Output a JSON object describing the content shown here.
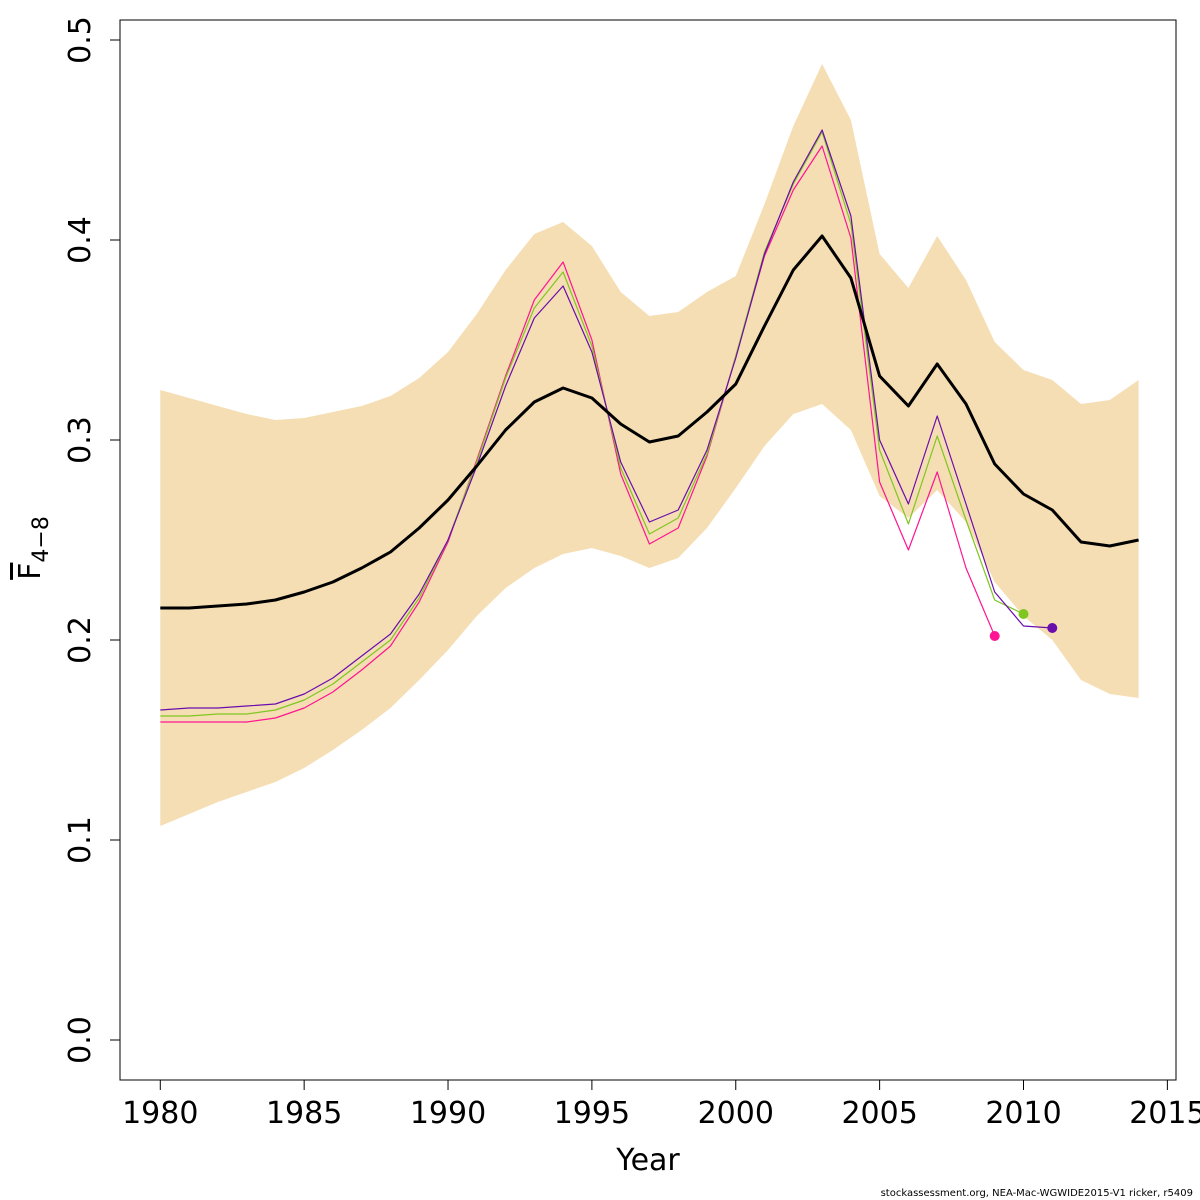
{
  "chart_data": {
    "type": "line",
    "xlabel": "Year",
    "ylabel": "F",
    "ylabel_subscript": "4−8",
    "xlim": [
      1978.6,
      2015.3
    ],
    "ylim": [
      -0.02,
      0.51
    ],
    "xticks": [
      1980,
      1985,
      1990,
      1995,
      2000,
      2005,
      2010,
      2015
    ],
    "yticks": [
      0.0,
      0.1,
      0.2,
      0.3,
      0.4,
      0.5
    ],
    "xtick_labels": [
      "1980",
      "1985",
      "1990",
      "1995",
      "2000",
      "2005",
      "2010",
      "2015"
    ],
    "ytick_labels": [
      "0.0",
      "0.1",
      "0.2",
      "0.3",
      "0.4",
      "0.5"
    ],
    "grid": false,
    "band": {
      "color": "#f5deb3",
      "x": [
        1980,
        1981,
        1982,
        1983,
        1984,
        1985,
        1986,
        1987,
        1988,
        1989,
        1990,
        1991,
        1992,
        1993,
        1994,
        1995,
        1996,
        1997,
        1998,
        1999,
        2000,
        2001,
        2002,
        2003,
        2004,
        2005,
        2006,
        2007,
        2008,
        2009,
        2010,
        2011,
        2012,
        2013,
        2014
      ],
      "upper": [
        0.325,
        0.321,
        0.317,
        0.313,
        0.31,
        0.311,
        0.314,
        0.317,
        0.322,
        0.331,
        0.344,
        0.363,
        0.385,
        0.403,
        0.409,
        0.397,
        0.374,
        0.362,
        0.364,
        0.374,
        0.382,
        0.418,
        0.457,
        0.488,
        0.46,
        0.393,
        0.376,
        0.402,
        0.38,
        0.349,
        0.335,
        0.33,
        0.318,
        0.32,
        0.33
      ],
      "lower": [
        0.107,
        0.113,
        0.119,
        0.124,
        0.129,
        0.136,
        0.145,
        0.155,
        0.166,
        0.18,
        0.195,
        0.212,
        0.226,
        0.236,
        0.243,
        0.246,
        0.242,
        0.236,
        0.241,
        0.256,
        0.276,
        0.297,
        0.313,
        0.318,
        0.305,
        0.272,
        0.261,
        0.275,
        0.259,
        0.229,
        0.212,
        0.2,
        0.18,
        0.173,
        0.171
      ]
    },
    "main_line": {
      "color": "#000000",
      "x": [
        1980,
        1981,
        1982,
        1983,
        1984,
        1985,
        1986,
        1987,
        1988,
        1989,
        1990,
        1991,
        1992,
        1993,
        1994,
        1995,
        1996,
        1997,
        1998,
        1999,
        2000,
        2001,
        2002,
        2003,
        2004,
        2005,
        2006,
        2007,
        2008,
        2009,
        2010,
        2011,
        2012,
        2013,
        2014
      ],
      "values": [
        0.216,
        0.216,
        0.217,
        0.218,
        0.22,
        0.224,
        0.229,
        0.236,
        0.244,
        0.256,
        0.27,
        0.287,
        0.305,
        0.319,
        0.326,
        0.321,
        0.308,
        0.299,
        0.302,
        0.314,
        0.328,
        0.357,
        0.385,
        0.402,
        0.381,
        0.332,
        0.317,
        0.338,
        0.318,
        0.288,
        0.273,
        0.265,
        0.249,
        0.247,
        0.25
      ]
    },
    "series": [
      {
        "color": "#ff1493",
        "x": [
          1980,
          1981,
          1982,
          1983,
          1984,
          1985,
          1986,
          1987,
          1988,
          1989,
          1990,
          1991,
          1992,
          1993,
          1994,
          1995,
          1996,
          1997,
          1998,
          1999,
          2000,
          2001,
          2002,
          2003,
          2004,
          2005,
          2006,
          2007,
          2008,
          2009
        ],
        "values": [
          0.159,
          0.159,
          0.159,
          0.159,
          0.161,
          0.166,
          0.174,
          0.185,
          0.197,
          0.219,
          0.249,
          0.29,
          0.332,
          0.37,
          0.389,
          0.35,
          0.283,
          0.248,
          0.256,
          0.292,
          0.342,
          0.392,
          0.425,
          0.447,
          0.401,
          0.279,
          0.245,
          0.284,
          0.236,
          0.202
        ]
      },
      {
        "color": "#7fc620",
        "x": [
          1980,
          1981,
          1982,
          1983,
          1984,
          1985,
          1986,
          1987,
          1988,
          1989,
          1990,
          1991,
          1992,
          1993,
          1994,
          1995,
          1996,
          1997,
          1998,
          1999,
          2000,
          2001,
          2002,
          2003,
          2004,
          2005,
          2006,
          2007,
          2008,
          2009,
          2010
        ],
        "values": [
          0.162,
          0.162,
          0.163,
          0.163,
          0.165,
          0.17,
          0.178,
          0.189,
          0.2,
          0.221,
          0.25,
          0.289,
          0.331,
          0.366,
          0.384,
          0.347,
          0.286,
          0.253,
          0.261,
          0.293,
          0.342,
          0.394,
          0.428,
          0.454,
          0.408,
          0.295,
          0.258,
          0.302,
          0.26,
          0.22,
          0.213
        ]
      },
      {
        "color": "#6a0dad",
        "x": [
          1980,
          1981,
          1982,
          1983,
          1984,
          1985,
          1986,
          1987,
          1988,
          1989,
          1990,
          1991,
          1992,
          1993,
          1994,
          1995,
          1996,
          1997,
          1998,
          1999,
          2000,
          2001,
          2002,
          2003,
          2004,
          2005,
          2006,
          2007,
          2008,
          2009,
          2010,
          2011
        ],
        "values": [
          0.165,
          0.166,
          0.166,
          0.167,
          0.168,
          0.173,
          0.181,
          0.192,
          0.203,
          0.223,
          0.25,
          0.287,
          0.327,
          0.361,
          0.377,
          0.344,
          0.289,
          0.259,
          0.265,
          0.295,
          0.341,
          0.393,
          0.429,
          0.455,
          0.412,
          0.3,
          0.268,
          0.312,
          0.268,
          0.224,
          0.207,
          0.206
        ]
      }
    ]
  },
  "footer": {
    "text": "stockassessment.org, NEA-Mac-WGWIDE2015-V1  ricker, r5409"
  }
}
